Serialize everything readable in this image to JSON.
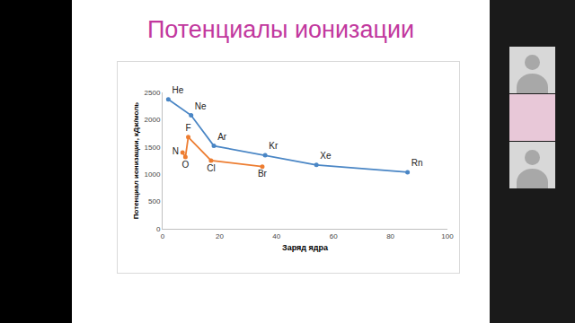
{
  "slide": {
    "title": "Потенциалы ионизации"
  },
  "chart_data": {
    "type": "line",
    "x_label": "Заряд ядра",
    "y_label": "Потенциал ионизации, кДж/моль",
    "xlim": [
      0,
      100
    ],
    "xticks": [
      0,
      20,
      40,
      60,
      80,
      100
    ],
    "ylim": [
      0,
      2500
    ],
    "yticks": [
      0,
      500,
      1000,
      1500,
      2000,
      2500
    ],
    "grid": false,
    "marker": "circle",
    "series": [
      {
        "color": "#4a86c5",
        "x": [
          2,
          10,
          18,
          36,
          54,
          86
        ],
        "values": [
          2372,
          2080,
          1520,
          1350,
          1170,
          1037
        ],
        "point_labels": [
          "He",
          "Ne",
          "Ar",
          "Kr",
          "Xe",
          "Rn"
        ]
      },
      {
        "color": "#ed7d31",
        "x": [
          7,
          8,
          9,
          17,
          35
        ],
        "values": [
          1400,
          1314,
          1681,
          1251,
          1140
        ],
        "point_labels": [
          "N",
          "O",
          "F",
          "Cl",
          "Br"
        ]
      }
    ]
  }
}
